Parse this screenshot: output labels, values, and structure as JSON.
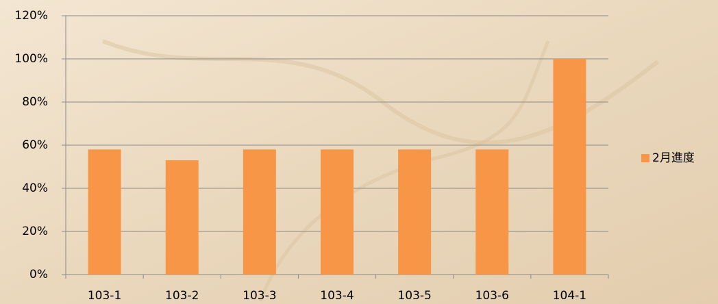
{
  "chart_data": {
    "type": "bar",
    "categories": [
      "103-1",
      "103-2",
      "103-3",
      "103-4",
      "103-5",
      "103-6",
      "104-1"
    ],
    "series": [
      {
        "name": "2月進度",
        "color": "#f79646",
        "values": [
          58,
          53,
          58,
          58,
          58,
          58,
          100
        ]
      }
    ],
    "ylim": [
      0,
      120
    ],
    "yticks": [
      {
        "value": 0,
        "label": "0%"
      },
      {
        "value": 20,
        "label": "20%"
      },
      {
        "value": 40,
        "label": "40%"
      },
      {
        "value": 60,
        "label": "60%"
      },
      {
        "value": 80,
        "label": "80%"
      },
      {
        "value": 100,
        "label": "100%"
      },
      {
        "value": 120,
        "label": "120%"
      }
    ],
    "grid": true,
    "legend": "right"
  }
}
